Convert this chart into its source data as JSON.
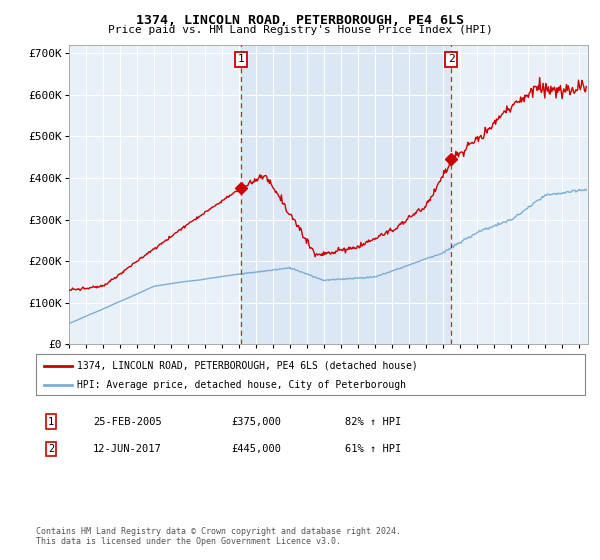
{
  "title": "1374, LINCOLN ROAD, PETERBOROUGH, PE4 6LS",
  "subtitle": "Price paid vs. HM Land Registry's House Price Index (HPI)",
  "legend_line1": "1374, LINCOLN ROAD, PETERBOROUGH, PE4 6LS (detached house)",
  "legend_line2": "HPI: Average price, detached house, City of Peterborough",
  "footnote": "Contains HM Land Registry data © Crown copyright and database right 2024.\nThis data is licensed under the Open Government Licence v3.0.",
  "marker1_label": "1",
  "marker1_date": "25-FEB-2005",
  "marker1_price": "£375,000",
  "marker1_hpi": "82% ↑ HPI",
  "marker1_x": 2005.12,
  "marker1_y": 375000,
  "marker2_label": "2",
  "marker2_date": "12-JUN-2017",
  "marker2_price": "£445,000",
  "marker2_hpi": "61% ↑ HPI",
  "marker2_x": 2017.45,
  "marker2_y": 445000,
  "red_color": "#cc0000",
  "blue_color": "#7bafd4",
  "shade_color": "#d6e4f5",
  "background_color": "#ffffff",
  "plot_bg_color": "#e8f0f8",
  "ylim": [
    0,
    720000
  ],
  "xlim": [
    1995.0,
    2025.5
  ],
  "yticks": [
    0,
    100000,
    200000,
    300000,
    400000,
    500000,
    600000,
    700000
  ],
  "ytick_labels": [
    "£0",
    "£100K",
    "£200K",
    "£300K",
    "£400K",
    "£500K",
    "£600K",
    "£700K"
  ],
  "xticks": [
    1995,
    1996,
    1997,
    1998,
    1999,
    2000,
    2001,
    2002,
    2003,
    2004,
    2005,
    2006,
    2007,
    2008,
    2009,
    2010,
    2011,
    2012,
    2013,
    2014,
    2015,
    2016,
    2017,
    2018,
    2019,
    2020,
    2021,
    2022,
    2023,
    2024,
    2025
  ]
}
